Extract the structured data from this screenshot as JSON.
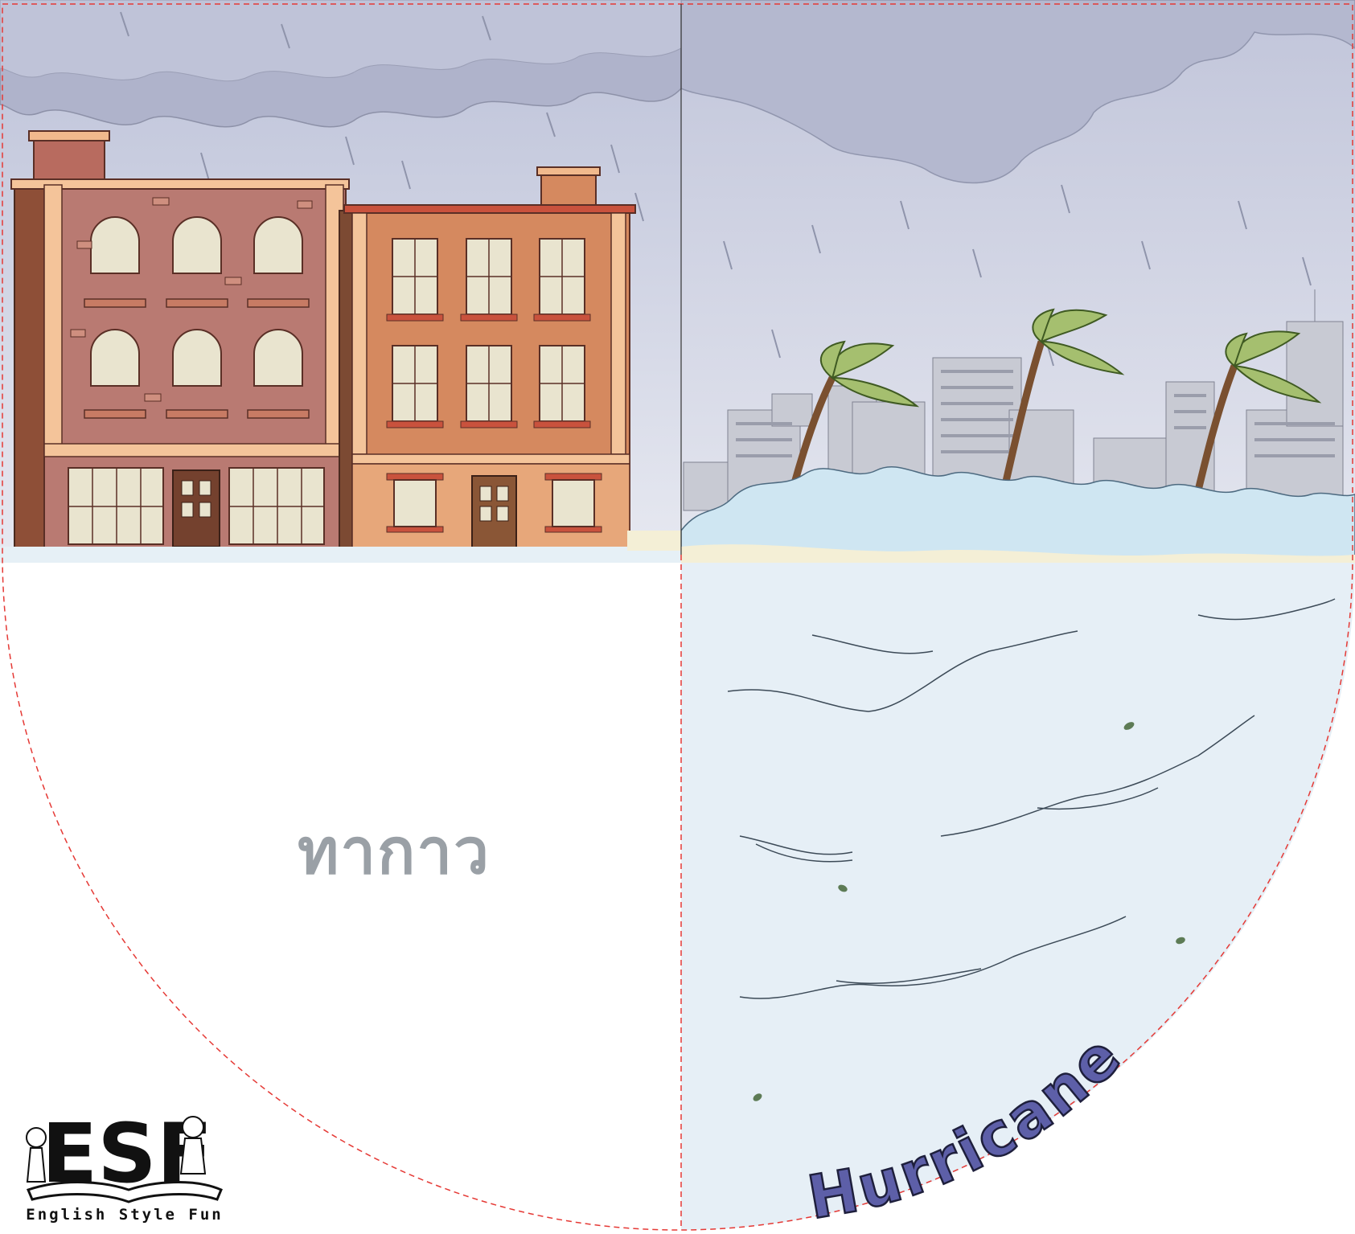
{
  "card": {
    "english_word": "Hurricane",
    "thai_word": "ทากาว"
  },
  "logo": {
    "letters": "ESF",
    "tagline": "English Style Fun"
  },
  "colors": {
    "sky": "#c5c9df",
    "cloud": "#b9bdd3",
    "water": "#e6eff6",
    "wave": "#cfe6f2",
    "building_left": "#b97a72",
    "building_right": "#d5895f",
    "trim": "#f4c49a",
    "window": "#e9e4cf",
    "palm_leaf": "#a5bf6f",
    "cut_line": "#e53935",
    "word": "#5d5fa8"
  }
}
